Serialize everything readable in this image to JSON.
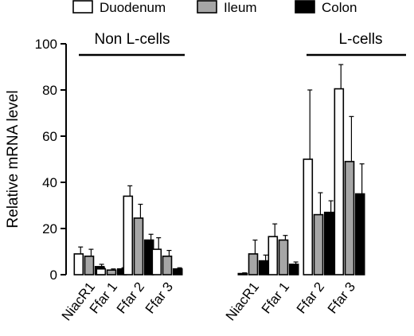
{
  "chart_data": {
    "type": "bar",
    "ylabel": "Relative mRNA level",
    "ylim": [
      0,
      100
    ],
    "yticks": [
      0,
      20,
      40,
      60,
      80,
      100
    ],
    "grid": false,
    "legend_position": "top",
    "groups": [
      {
        "label": "Non L-cells",
        "categories": [
          "NiacR1",
          "Ffar 1",
          "Ffar 2",
          "Ffar 3"
        ]
      },
      {
        "label": "L-cells",
        "categories": [
          "NiacR1",
          "Ffar 1",
          "Ffar 2",
          "Ffar 3"
        ]
      }
    ],
    "series": [
      {
        "name": "Duodenum",
        "color": "#ffffff",
        "values": [
          9,
          2.5,
          34,
          11,
          0.5,
          16.5,
          50,
          80.5
        ],
        "errors": [
          3,
          0.5,
          4.5,
          5,
          0.3,
          5.5,
          30,
          10.5
        ]
      },
      {
        "name": "Ileum",
        "color": "#a6a6a6",
        "values": [
          8,
          2,
          24.5,
          8,
          9,
          15,
          26,
          49
        ],
        "errors": [
          3,
          0.5,
          6,
          2.5,
          6,
          2,
          9.5,
          19.5
        ]
      },
      {
        "name": "Colon",
        "color": "#000000",
        "values": [
          3.5,
          2.5,
          15,
          2.5,
          6,
          4.5,
          27,
          35
        ],
        "errors": [
          1,
          0.5,
          2.5,
          0.5,
          2.5,
          1,
          5,
          13
        ]
      }
    ]
  }
}
